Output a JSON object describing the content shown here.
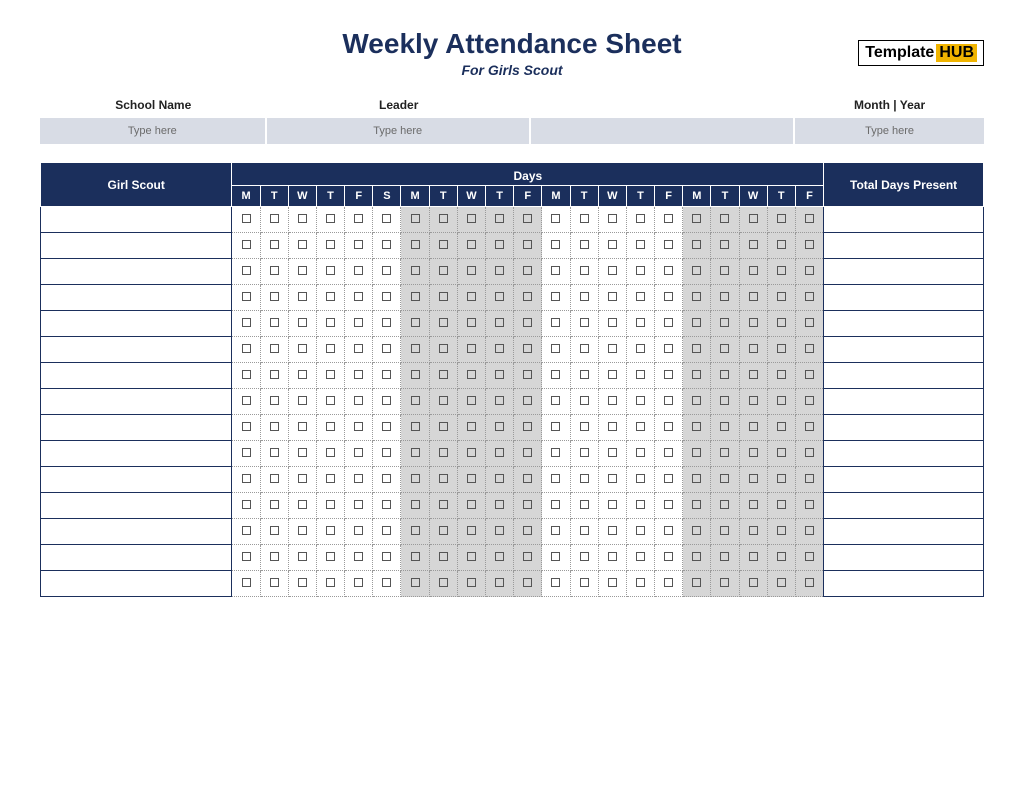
{
  "title": "Weekly Attendance Sheet",
  "subtitle": "For Girls Scout",
  "logo": {
    "part1": "Template",
    "part2": "HUB"
  },
  "fields": {
    "labels": {
      "school": "School Name",
      "leader": "Leader",
      "blank": "",
      "month": "Month | Year"
    },
    "placeholders": {
      "school": "Type here",
      "leader": "Type here",
      "blank": "",
      "month": "Type here"
    }
  },
  "table": {
    "name_header": "Girl Scout",
    "days_header": "Days",
    "total_header": "Total Days Present",
    "day_labels": [
      "M",
      "T",
      "W",
      "T",
      "F",
      "S",
      "M",
      "T",
      "W",
      "T",
      "F",
      "M",
      "T",
      "W",
      "T",
      "F",
      "M",
      "T",
      "W",
      "T",
      "F"
    ],
    "shaded_columns": [
      6,
      7,
      8,
      9,
      10,
      16,
      17,
      18,
      19,
      20
    ],
    "row_count": 15,
    "colors": {
      "header_bg": "#1b2f5c",
      "header_fg": "#ffffff",
      "field_bg": "#d8dce5",
      "shaded_bg": "#d6d6d6",
      "border": "#1b2f5c",
      "dotted": "#9a9a9a"
    }
  }
}
